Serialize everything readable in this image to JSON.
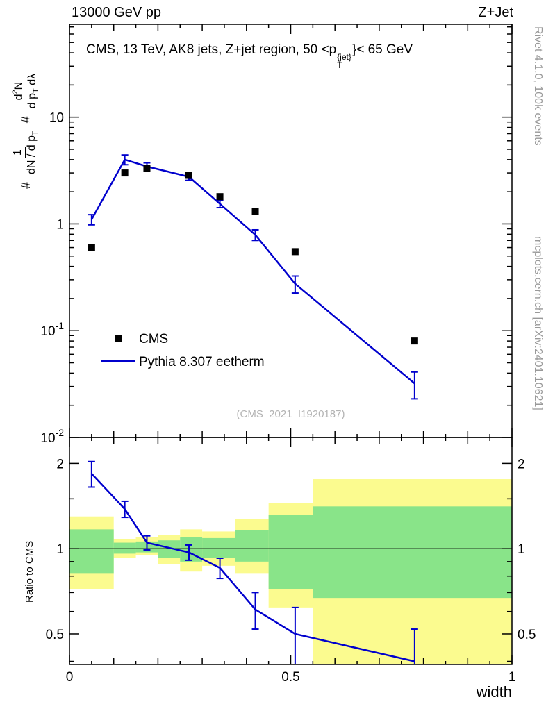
{
  "header": {
    "left": "13000 GeV pp",
    "right": "Z+Jet"
  },
  "title": {
    "pre": "CMS, 13 TeV, AK8 jets, Z+jet region, 50 <p",
    "sup": "{jet}",
    "sub": "T",
    "post": "}< 65 GeV"
  },
  "ylabel": {
    "hash1": "#",
    "frac1_num": "1",
    "frac1_den_pre": "dN / d p",
    "frac1_den_sub": "T",
    "hash2": "#",
    "frac2_num_pre": "d",
    "frac2_num_sup": "2",
    "frac2_num_post": "N",
    "frac2_den_pre": "d p",
    "frac2_den_sub": "T",
    "frac2_den_post": " dλ"
  },
  "watermarks": {
    "rivet": "Rivet 4.1.0, 100k events",
    "mcplots": "mcplots.cern.ch [arXiv:2401.10621]",
    "analysis": "(CMS_2021_I1920187)"
  },
  "legend": [
    {
      "label": "CMS",
      "type": "marker",
      "color": "#000000"
    },
    {
      "label": "Pythia 8.307 eetherm",
      "type": "line",
      "color": "#0000cd"
    }
  ],
  "axes": {
    "x": {
      "label": "width",
      "lim": [
        0,
        1
      ],
      "ticks": [
        {
          "v": 0,
          "label": "0"
        },
        {
          "v": 0.5,
          "label": "0.5"
        },
        {
          "v": 1,
          "label": "1"
        }
      ]
    },
    "y_main": {
      "scale": "log",
      "lim": [
        0.01,
        74
      ],
      "ticks": [
        {
          "v": 0.01,
          "base": "10",
          "exp": "-2"
        },
        {
          "v": 0.1,
          "base": "10",
          "exp": "-1"
        },
        {
          "v": 1,
          "base": "1"
        },
        {
          "v": 10,
          "base": "10"
        }
      ]
    },
    "y_ratio": {
      "label": "Ratio to CMS",
      "scale": "log",
      "lim": [
        0.39,
        2.47
      ],
      "ticks": [
        {
          "v": 0.5,
          "label": "0.5"
        },
        {
          "v": 1,
          "label": "1"
        },
        {
          "v": 2,
          "label": "2"
        }
      ],
      "minor_ticks": [
        0.4,
        0.6,
        0.7,
        0.8,
        0.9,
        1.5
      ]
    }
  },
  "chart_data": {
    "type": "line",
    "x": [
      0.05,
      0.125,
      0.175,
      0.27,
      0.34,
      0.42,
      0.51,
      0.78
    ],
    "series": [
      {
        "name": "CMS",
        "type": "scatter",
        "marker": "square",
        "color": "#000000",
        "y": [
          0.6,
          3.0,
          3.3,
          2.85,
          1.8,
          1.3,
          0.55,
          0.08
        ]
      },
      {
        "name": "Pythia 8.307 eetherm",
        "type": "line",
        "color": "#0000cd",
        "y": [
          1.1,
          4.0,
          3.45,
          2.76,
          1.54,
          0.79,
          0.275,
          0.032
        ],
        "yerr": [
          0.12,
          0.42,
          0.28,
          0.2,
          0.12,
          0.09,
          0.05,
          0.009
        ]
      }
    ],
    "ratio": {
      "y": [
        1.84,
        1.38,
        1.05,
        0.97,
        0.855,
        0.61,
        0.5,
        0.4
      ],
      "yerr": [
        0.19,
        0.09,
        0.06,
        0.06,
        0.07,
        0.09,
        0.12,
        0.12
      ],
      "bands": [
        {
          "x0": 0.0,
          "x1": 0.1,
          "yellow": [
            0.72,
            1.3
          ],
          "green": [
            0.82,
            1.17
          ]
        },
        {
          "x0": 0.1,
          "x1": 0.15,
          "yellow": [
            0.93,
            1.08
          ],
          "green": [
            0.96,
            1.05
          ]
        },
        {
          "x0": 0.15,
          "x1": 0.2,
          "yellow": [
            0.95,
            1.1
          ],
          "green": [
            0.97,
            1.06
          ]
        },
        {
          "x0": 0.2,
          "x1": 0.25,
          "yellow": [
            0.88,
            1.12
          ],
          "green": [
            0.93,
            1.07
          ]
        },
        {
          "x0": 0.25,
          "x1": 0.3,
          "yellow": [
            0.83,
            1.17
          ],
          "green": [
            0.9,
            1.1
          ]
        },
        {
          "x0": 0.3,
          "x1": 0.375,
          "yellow": [
            0.87,
            1.15
          ],
          "green": [
            0.93,
            1.09
          ]
        },
        {
          "x0": 0.375,
          "x1": 0.45,
          "yellow": [
            0.82,
            1.27
          ],
          "green": [
            0.9,
            1.16
          ]
        },
        {
          "x0": 0.45,
          "x1": 0.55,
          "yellow": [
            0.62,
            1.45
          ],
          "green": [
            0.72,
            1.32
          ]
        },
        {
          "x0": 0.55,
          "x1": 1.0,
          "yellow": [
            0.35,
            1.76
          ],
          "green": [
            0.67,
            1.41
          ]
        }
      ]
    },
    "colors": {
      "mc_line": "#0000cd",
      "band_yellow": "#fbfb8f",
      "band_green": "#89e489"
    }
  }
}
